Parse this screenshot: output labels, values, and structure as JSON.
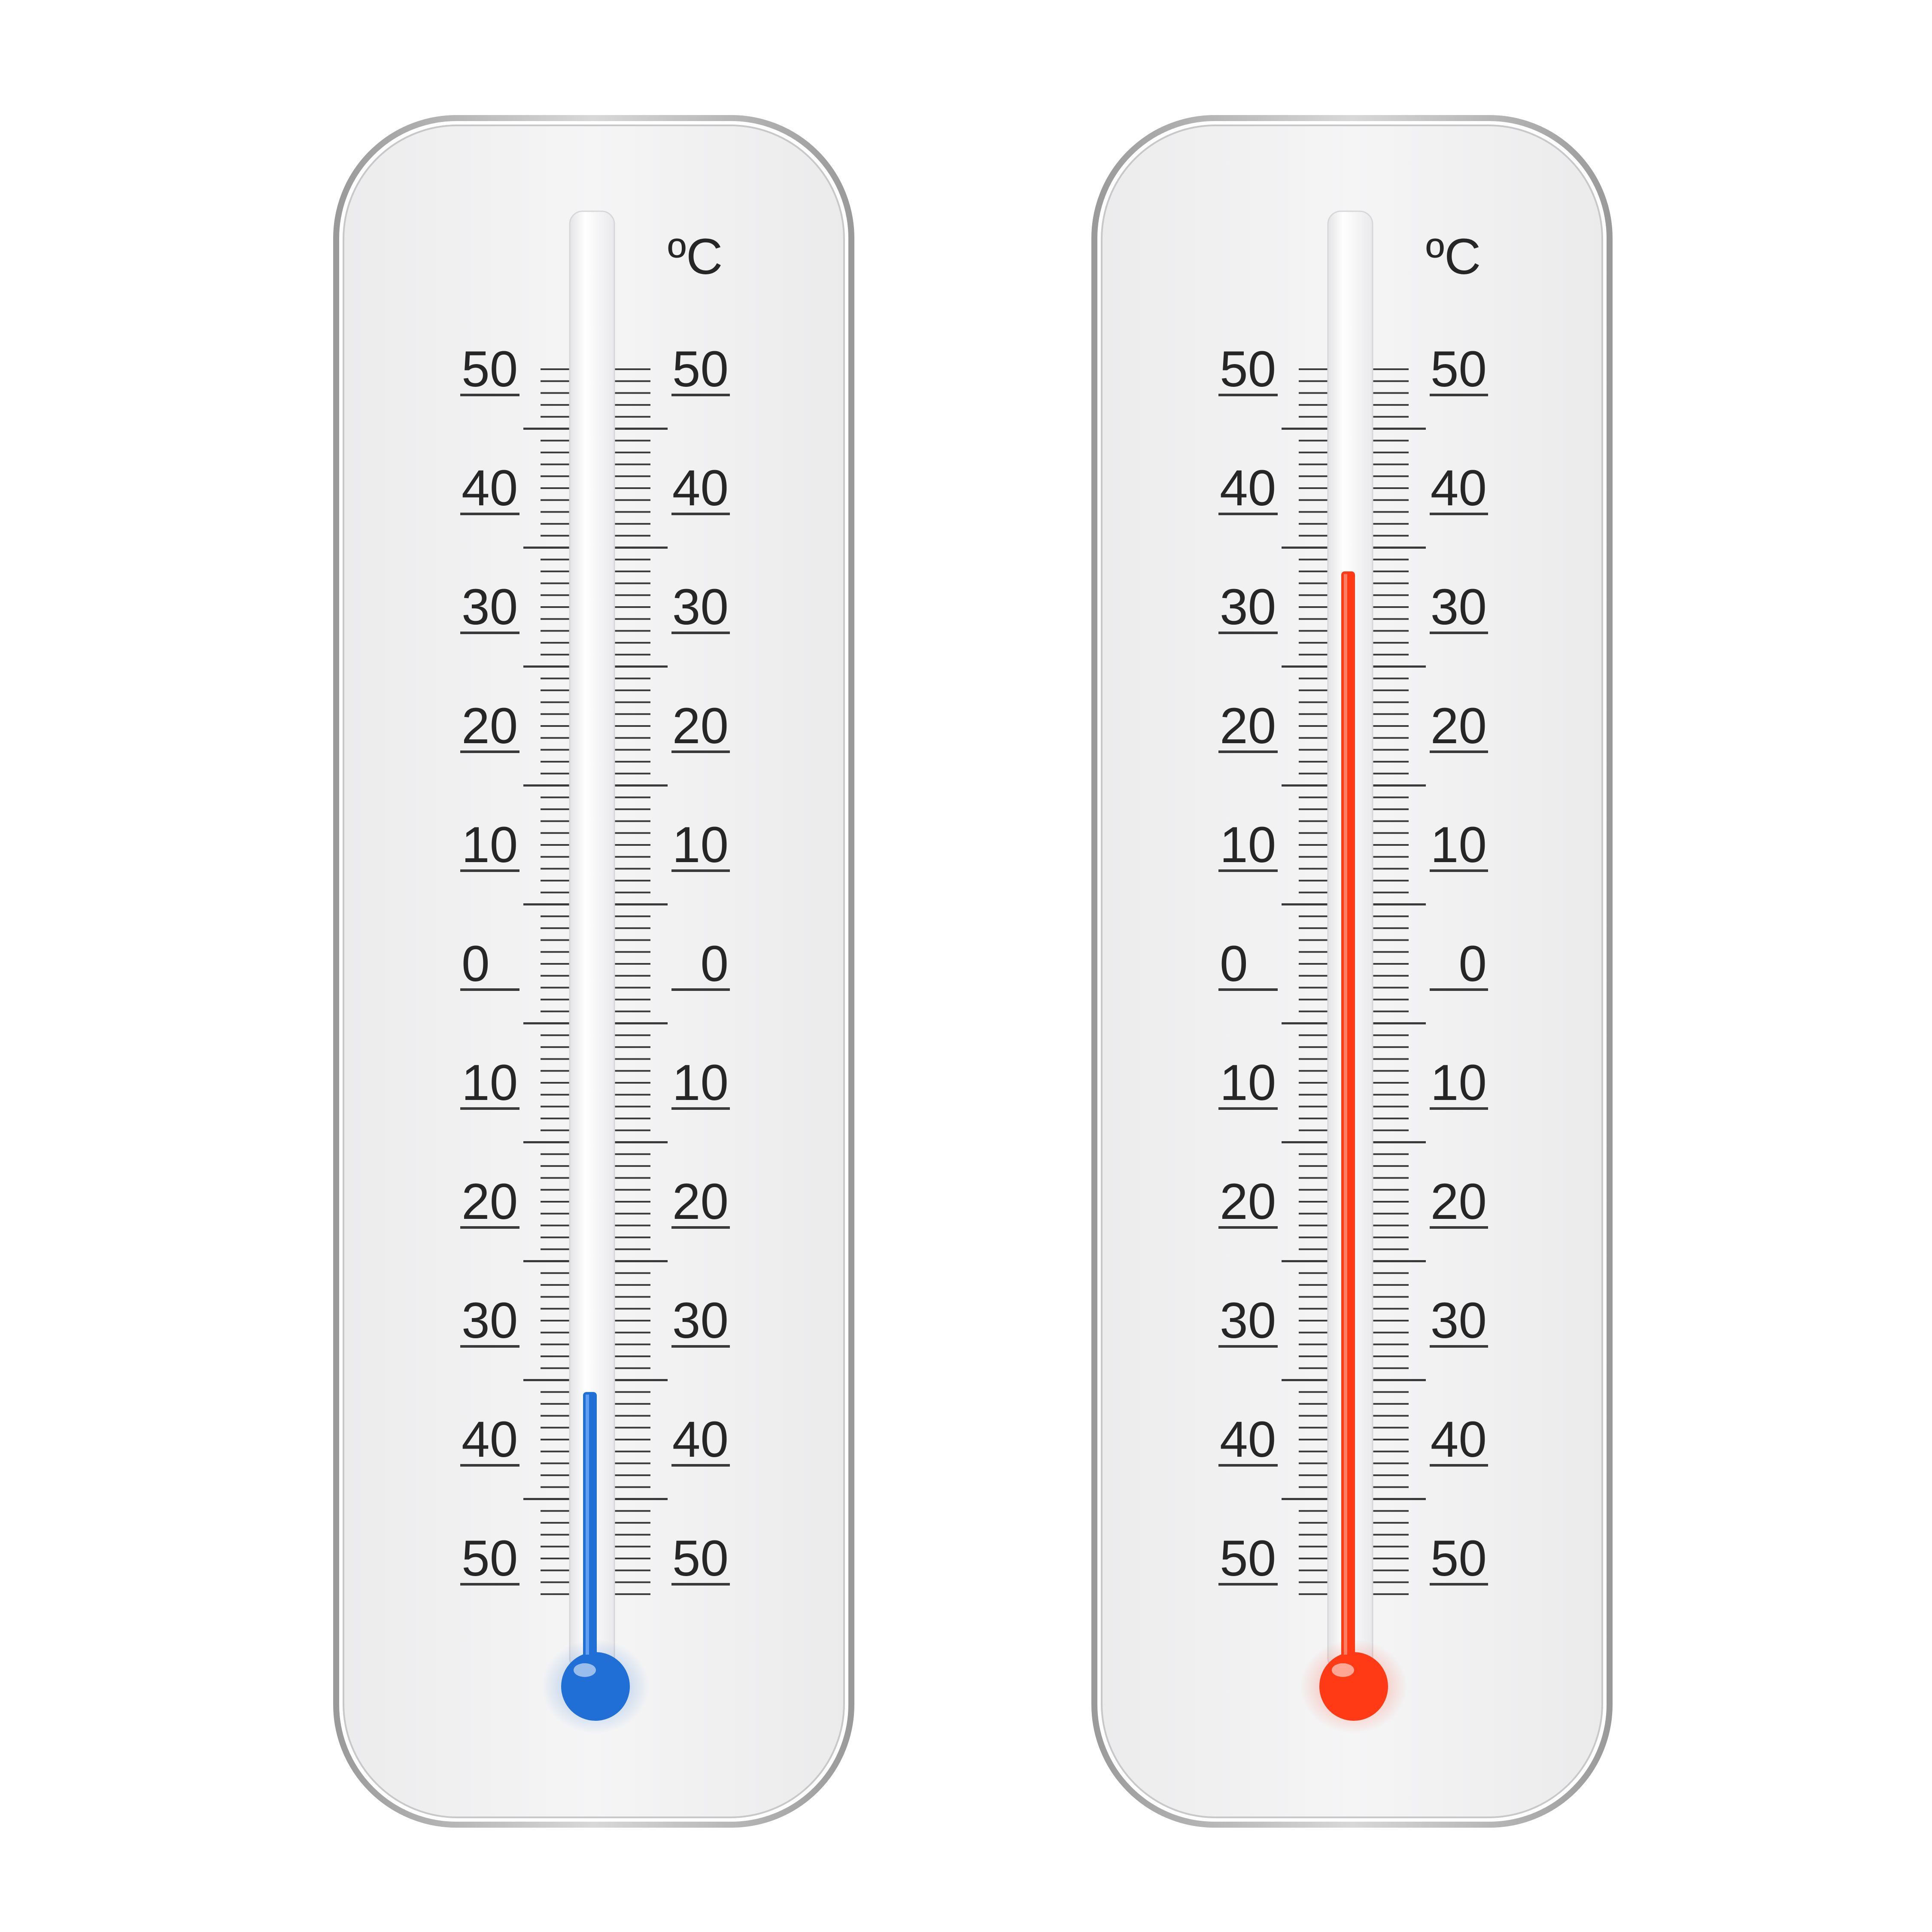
{
  "unit_symbol": "ºC",
  "scale_labels": [
    "50",
    "40",
    "30",
    "20",
    "10",
    "0",
    "10",
    "20",
    "30",
    "40",
    "50"
  ],
  "scale": {
    "top_value": 50,
    "bottom_value": -50,
    "major_step": 10,
    "minor_step": 1
  },
  "thermometers": [
    {
      "id": "cold",
      "reading_celsius": -36,
      "liquid_color": "#1f6fd6",
      "liquid_highlight": "#7fb4ff"
    },
    {
      "id": "hot",
      "reading_celsius": 33,
      "liquid_color": "#ff3a14",
      "liquid_highlight": "#ff9a80"
    }
  ]
}
